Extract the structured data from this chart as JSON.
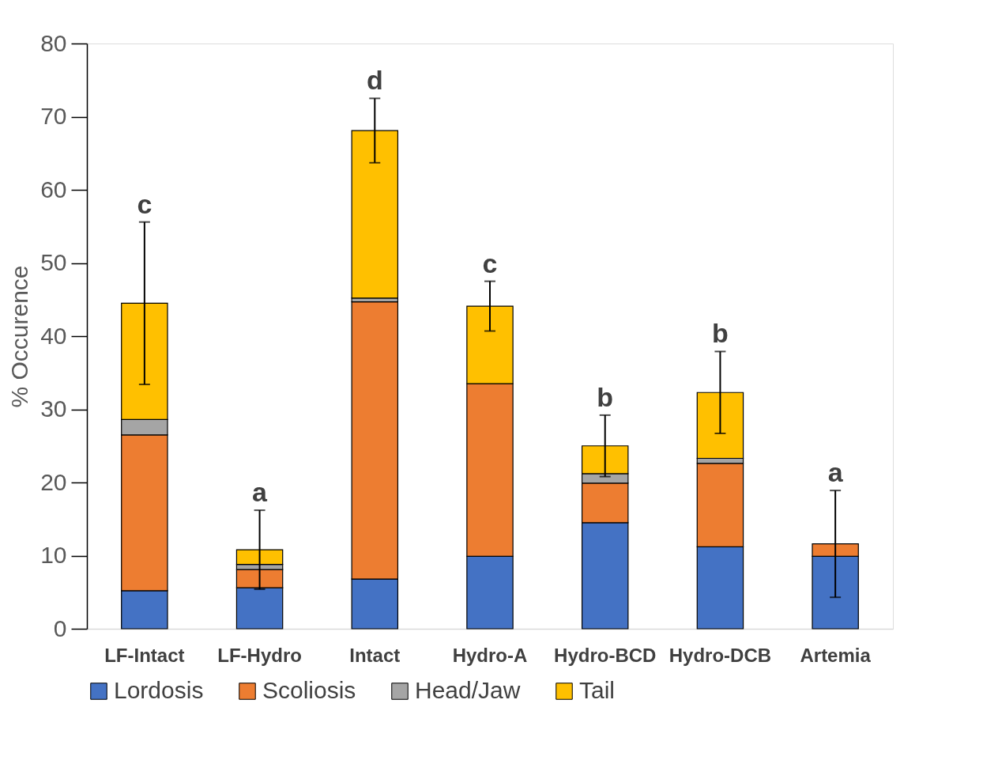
{
  "chart_data": {
    "type": "bar",
    "stacked": true,
    "ylabel": "% Occurence",
    "categories": [
      "LF-Intact",
      "LF-Hydro",
      "Intact",
      "Hydro-A",
      "Hydro-BCD",
      "Hydro-DCB",
      "Artemia"
    ],
    "series": [
      {
        "name": "Lordosis",
        "color": "#4472c4",
        "values": [
          5.2,
          5.6,
          6.8,
          9.9,
          14.5,
          11.2,
          9.9
        ]
      },
      {
        "name": "Scoliosis",
        "color": "#ed7d31",
        "values": [
          21.3,
          2.5,
          37.9,
          23.6,
          5.4,
          11.4,
          1.7
        ]
      },
      {
        "name": "Head/Jaw",
        "color": "#a5a5a5",
        "values": [
          2.1,
          0.7,
          0.5,
          0,
          1.3,
          0.7,
          0
        ]
      },
      {
        "name": "Tail",
        "color": "#ffc000",
        "values": [
          15.9,
          2.0,
          22.9,
          10.6,
          3.8,
          9.0,
          0
        ],
        "errors": [
          11.1,
          5.4,
          4.4,
          3.4,
          4.2,
          5.6,
          7.3
        ]
      }
    ],
    "ylim": [
      0,
      80
    ],
    "yticks": [
      0,
      10,
      20,
      30,
      40,
      50,
      60,
      70,
      80
    ],
    "grid": false,
    "legend": "bottom",
    "annotations": [
      "c",
      "a",
      "d",
      "c",
      "b",
      "b",
      "a"
    ]
  }
}
